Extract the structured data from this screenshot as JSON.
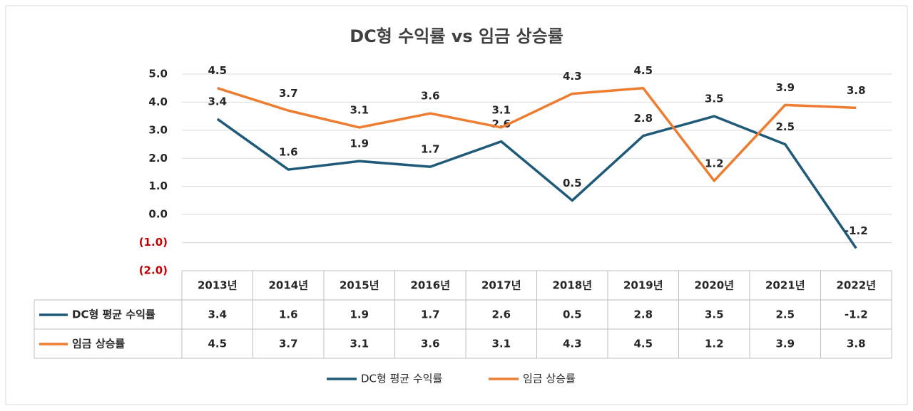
{
  "chart_data": {
    "type": "line",
    "title": "DC형 수익률 vs 임금 상승률",
    "categories": [
      "2013년",
      "2014년",
      "2015년",
      "2016년",
      "2017년",
      "2018년",
      "2019년",
      "2020년",
      "2021년",
      "2022년"
    ],
    "series": [
      {
        "name": "DC형 평균 수익률",
        "color": "#1f5b78",
        "values": [
          3.4,
          1.6,
          1.9,
          1.7,
          2.6,
          0.5,
          2.8,
          3.5,
          2.5,
          -1.2
        ]
      },
      {
        "name": "임금 상승률",
        "color": "#ed7d31",
        "values": [
          4.5,
          3.7,
          3.1,
          3.6,
          3.1,
          4.3,
          4.5,
          1.2,
          3.9,
          3.8
        ]
      }
    ],
    "ylim": [
      -2,
      5
    ],
    "yticks": [
      {
        "value": 5,
        "label": "5.0"
      },
      {
        "value": 4,
        "label": "4.0"
      },
      {
        "value": 3,
        "label": "3.0"
      },
      {
        "value": 2,
        "label": "2.0"
      },
      {
        "value": 1,
        "label": "1.0"
      },
      {
        "value": 0,
        "label": "0.0"
      },
      {
        "value": -1,
        "label": "(1.0)"
      },
      {
        "value": -2,
        "label": "(2.0)"
      }
    ],
    "negative_tick_color": "#c00000",
    "grid": true,
    "data_labels": true,
    "data_table": true,
    "legend": "bottom"
  }
}
